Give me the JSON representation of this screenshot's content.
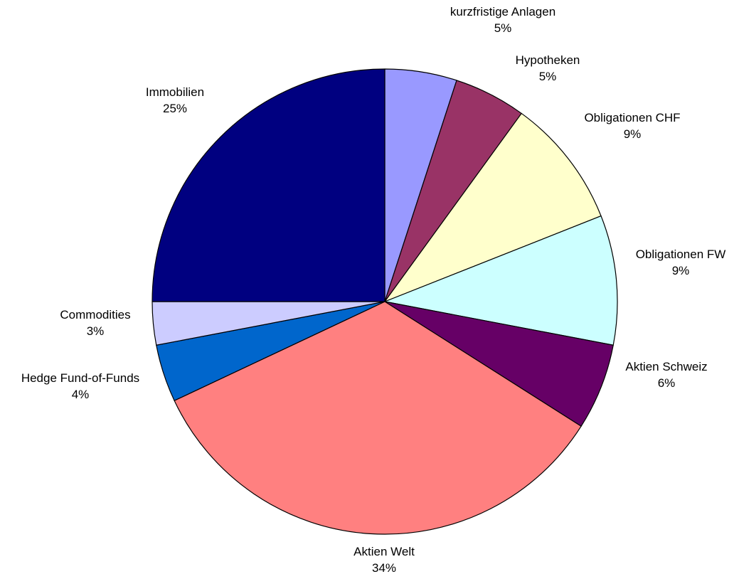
{
  "chart_data": {
    "type": "pie",
    "title": "",
    "start_angle_deg": 0,
    "direction": "clockwise",
    "slices": [
      {
        "label": "kurzfristige Anlagen",
        "value": 5,
        "value_label": "5%",
        "color": "#9999ff"
      },
      {
        "label": "Hypotheken",
        "value": 5,
        "value_label": "5%",
        "color": "#993366"
      },
      {
        "label": "Obligationen CHF",
        "value": 9,
        "value_label": "9%",
        "color": "#ffffcc"
      },
      {
        "label": "Obligationen FW",
        "value": 9,
        "value_label": "9%",
        "color": "#ccffff"
      },
      {
        "label": "Aktien Schweiz",
        "value": 6,
        "value_label": "6%",
        "color": "#660066"
      },
      {
        "label": "Aktien Welt",
        "value": 34,
        "value_label": "34%",
        "color": "#ff8080"
      },
      {
        "label": "Hedge Fund-of-Funds",
        "value": 4,
        "value_label": "4%",
        "color": "#0066cc"
      },
      {
        "label": "Commodities",
        "value": 3,
        "value_label": "3%",
        "color": "#ccccff"
      },
      {
        "label": "Immobilien",
        "value": 25,
        "value_label": "25%",
        "color": "#000080"
      }
    ]
  }
}
